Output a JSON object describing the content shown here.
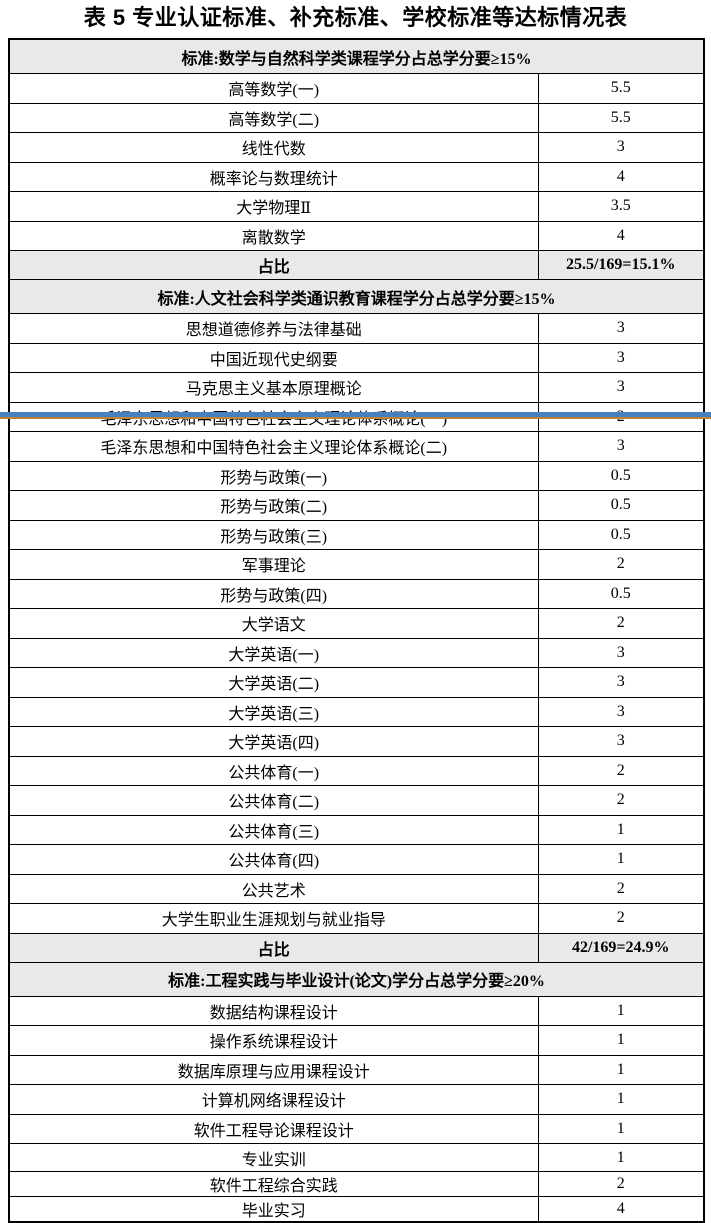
{
  "title": "表 5 专业认证标准、补充标准、学校标准等达标情况表",
  "colors": {
    "section_header_bg": "#e9e9e9",
    "table_border": "#000000",
    "overlay_line_blue": "#4a80c0",
    "overlay_line_orange": "#bf8332"
  },
  "table": {
    "sections": [
      {
        "header": "标准:数学与自然科学类课程学分占总学分要≥15%",
        "rows": [
          {
            "name": "高等数学(一)",
            "credits": "5.5"
          },
          {
            "name": "高等数学(二)",
            "credits": "5.5"
          },
          {
            "name": "线性代数",
            "credits": "3"
          },
          {
            "name": "概率论与数理统计",
            "credits": "4"
          },
          {
            "name": "大学物理Ⅱ",
            "credits": "3.5"
          },
          {
            "name": "离散数学",
            "credits": "4"
          }
        ],
        "ratio": {
          "label": "占比",
          "value": "25.5/169=15.1%"
        }
      },
      {
        "header": "标准:人文社会科学类通识教育课程学分占总学分要≥15%",
        "rows": [
          {
            "name": "思想道德修养与法律基础",
            "credits": "3"
          },
          {
            "name": "中国近现代史纲要",
            "credits": "3"
          },
          {
            "name": "马克思主义基本原理概论",
            "credits": "3"
          },
          {
            "name": "毛泽东思想和中国特色社会主义理论体系概论(一)",
            "credits": "2"
          },
          {
            "name": "毛泽东思想和中国特色社会主义理论体系概论(二)",
            "credits": "3"
          },
          {
            "name": "形势与政策(一)",
            "credits": "0.5"
          },
          {
            "name": "形势与政策(二)",
            "credits": "0.5"
          },
          {
            "name": "形势与政策(三)",
            "credits": "0.5"
          },
          {
            "name": "军事理论",
            "credits": "2"
          },
          {
            "name": "形势与政策(四)",
            "credits": "0.5"
          },
          {
            "name": "大学语文",
            "credits": "2"
          },
          {
            "name": "大学英语(一)",
            "credits": "3"
          },
          {
            "name": "大学英语(二)",
            "credits": "3"
          },
          {
            "name": "大学英语(三)",
            "credits": "3"
          },
          {
            "name": "大学英语(四)",
            "credits": "3"
          },
          {
            "name": "公共体育(一)",
            "credits": "2"
          },
          {
            "name": "公共体育(二)",
            "credits": "2"
          },
          {
            "name": "公共体育(三)",
            "credits": "1"
          },
          {
            "name": "公共体育(四)",
            "credits": "1"
          },
          {
            "name": "公共艺术",
            "credits": "2"
          },
          {
            "name": "大学生职业生涯规划与就业指导",
            "credits": "2"
          }
        ],
        "ratio": {
          "label": "占比",
          "value": "42/169=24.9%"
        }
      },
      {
        "header": "标准:工程实践与毕业设计(论文)学分占总学分要≥20%",
        "rows": [
          {
            "name": "数据结构课程设计",
            "credits": "1"
          },
          {
            "name": "操作系统课程设计",
            "credits": "1"
          },
          {
            "name": "数据库原理与应用课程设计",
            "credits": "1"
          },
          {
            "name": "计算机网络课程设计",
            "credits": "1"
          },
          {
            "name": "软件工程导论课程设计",
            "credits": "1"
          },
          {
            "name": "专业实训",
            "credits": "1"
          },
          {
            "name": "软件工程综合实践",
            "credits": "2"
          },
          {
            "name": "毕业实习",
            "credits": "4"
          }
        ]
      }
    ]
  }
}
